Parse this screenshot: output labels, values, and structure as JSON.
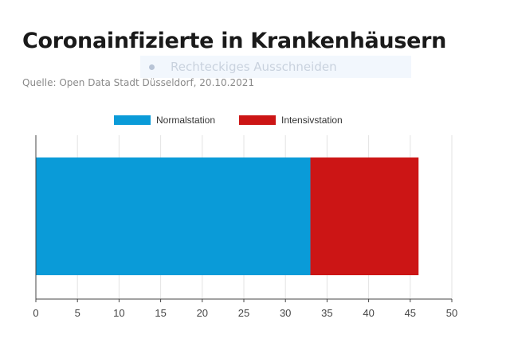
{
  "header": {
    "title": "Coronainfizierte in Krankenhäusern",
    "subtitle": "Quelle: Open Data Stadt Düsseldorf, 20.10.2021"
  },
  "overlay": {
    "label": "Rechteckiges Ausschneiden",
    "icon": "dot-icon"
  },
  "chart_data": {
    "type": "bar",
    "orientation": "horizontal",
    "stacked": true,
    "categories": [
      ""
    ],
    "series": [
      {
        "name": "Normalstation",
        "values": [
          33
        ],
        "color": "#0a9bd8"
      },
      {
        "name": "Intensivstation",
        "values": [
          13
        ],
        "color": "#cc1515"
      }
    ],
    "xlim": [
      0,
      50
    ],
    "xticks": [
      0,
      5,
      10,
      15,
      20,
      25,
      30,
      35,
      40,
      45,
      50
    ],
    "grid": true,
    "legend_position": "top"
  }
}
